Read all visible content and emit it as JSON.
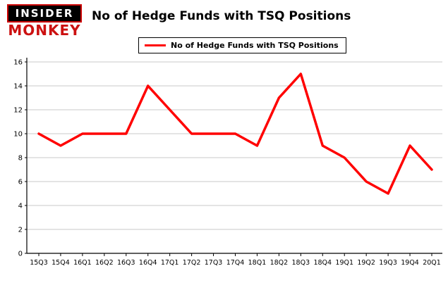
{
  "logo": {
    "line1": "INSIDER",
    "line2": "MONKEY"
  },
  "header": {
    "title": "No of Hedge Funds with TSQ Positions"
  },
  "legend": {
    "label": "No of Hedge Funds with TSQ Positions",
    "color": "#ff0000"
  },
  "chart_data": {
    "type": "line",
    "title": "No of Hedge Funds with TSQ Positions",
    "categories": [
      "15Q3",
      "15Q4",
      "16Q1",
      "16Q2",
      "16Q3",
      "16Q4",
      "17Q1",
      "17Q2",
      "17Q3",
      "17Q4",
      "18Q1",
      "18Q2",
      "18Q3",
      "18Q4",
      "19Q1",
      "19Q2",
      "19Q3",
      "19Q4",
      "20Q1"
    ],
    "series": [
      {
        "name": "No of Hedge Funds with TSQ Positions",
        "color": "#ff0000",
        "values": [
          10,
          9,
          10,
          10,
          10,
          14,
          12,
          10,
          10,
          10,
          9,
          13,
          15,
          9,
          8,
          6,
          5,
          9,
          7
        ]
      }
    ],
    "xlabel": "",
    "ylabel": "",
    "ylim": [
      0,
      16
    ],
    "ytick_step": 2,
    "yticks": [
      0,
      2,
      4,
      6,
      8,
      10,
      12,
      14,
      16
    ],
    "grid": true,
    "gridline_color": "#c8c8c8",
    "axis_color": "#000000",
    "legend_position": "top-center",
    "line_width": 3.5
  }
}
